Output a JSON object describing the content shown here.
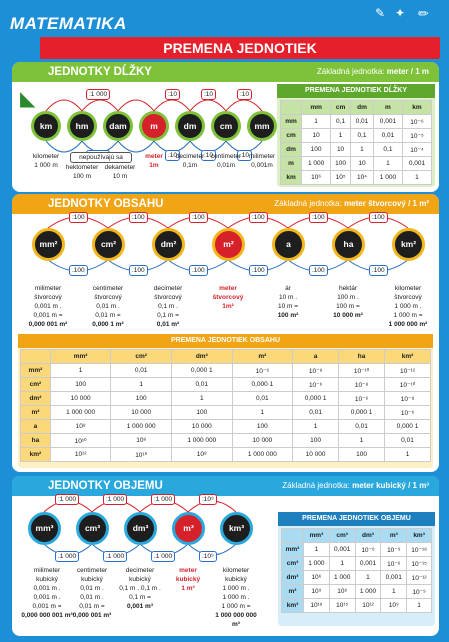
{
  "header": {
    "title": "MATEMATIKA",
    "subtitle": "PREMENA JEDNOTIEK"
  },
  "len": {
    "title": "JEDNOTKY DĹŽKY",
    "base_label": "Základná jednotka:",
    "base_value": "meter / 1 m",
    "units": [
      "km",
      "hm",
      "dam",
      "m",
      "dm",
      "cm",
      "mm"
    ],
    "top_factors": [
      ":1 000",
      ":10",
      ":10",
      ":10"
    ],
    "bottom_factors": [
      ".1 000",
      ".10",
      ".10",
      ".10"
    ],
    "captions": [
      {
        "name": "kilometer",
        "value": "1 000 m"
      },
      {
        "name": "hektometer",
        "value": "100 m"
      },
      {
        "name": "dekameter",
        "value": "10 m"
      },
      {
        "name": "meter",
        "value": "1m"
      },
      {
        "name": "decimeter",
        "value": "0,1m"
      },
      {
        "name": "centimeter",
        "value": "0,01m"
      },
      {
        "name": "milimeter",
        "value": "0,001m"
      }
    ],
    "note": "nepoužívajú sa",
    "table": {
      "title": "PREMENA JEDNOTIEK DĹŽKY",
      "cols": [
        "mm",
        "cm",
        "dm",
        "m",
        "km"
      ],
      "rows": [
        {
          "h": "mm",
          "c": [
            "1",
            "0,1",
            "0,01",
            "0,001",
            "10⁻⁶"
          ]
        },
        {
          "h": "cm",
          "c": [
            "10",
            "1",
            "0,1",
            "0,01",
            "10⁻⁵"
          ]
        },
        {
          "h": "dm",
          "c": [
            "100",
            "10",
            "1",
            "0,1",
            "10⁻⁴"
          ]
        },
        {
          "h": "m",
          "c": [
            "1 000",
            "100",
            "10",
            "1",
            "0,001"
          ]
        },
        {
          "h": "km",
          "c": [
            "10⁶",
            "10⁵",
            "10⁴",
            "1 000",
            "1"
          ]
        }
      ]
    }
  },
  "area": {
    "title": "JEDNOTKY OBSAHU",
    "base_label": "Základná jednotka:",
    "base_value": "meter štvorcový / 1 m²",
    "units": [
      "mm²",
      "cm²",
      "dm²",
      "m²",
      "a",
      "ha",
      "km²"
    ],
    "top_factors": [
      ":100",
      ":100",
      ":100",
      ":100",
      ":100",
      ":100"
    ],
    "bottom_factors": [
      ".100",
      ".100",
      ".100",
      ".100",
      ".100",
      ".100"
    ],
    "captions": [
      {
        "name": "milimeter\nštvorcový",
        "l1": "0,001 m .",
        "l2": "0,001 m =",
        "value": "0,000 001 m²"
      },
      {
        "name": "centimeter\nštvorcový",
        "l1": "0,01 m .",
        "l2": "0,01 m =",
        "value": "0,000 1 m²"
      },
      {
        "name": "decimeter\nštvorcový",
        "l1": "0,1 m .",
        "l2": "0,1 m =",
        "value": "0,01 m²"
      },
      {
        "name": "meter\nštvorcový",
        "l1": "1m²",
        "l2": "",
        "value": ""
      },
      {
        "name": "ár",
        "l1": "10 m .",
        "l2": "10 m =",
        "value": "100 m²"
      },
      {
        "name": "hektár",
        "l1": "100 m .",
        "l2": "100 m =",
        "value": "10 000 m²"
      },
      {
        "name": "kilometer\nštvorcový",
        "l1": "1 000 m .",
        "l2": "1 000 m =",
        "value": "1 000 000 m²"
      }
    ],
    "table": {
      "title": "PREMENA JEDNOTIEK OBSAHU",
      "cols": [
        "mm²",
        "cm²",
        "dm²",
        "m²",
        "a",
        "ha",
        "km²"
      ],
      "rows": [
        {
          "h": "mm²",
          "c": [
            "1",
            "0,01",
            "0,000 1",
            "10⁻⁶",
            "10⁻⁸",
            "10⁻¹⁰",
            "10⁻¹²"
          ]
        },
        {
          "h": "cm²",
          "c": [
            "100",
            "1",
            "0,01",
            "0,000 1",
            "10⁻⁶",
            "10⁻⁸",
            "10⁻¹⁰"
          ]
        },
        {
          "h": "dm²",
          "c": [
            "10 000",
            "100",
            "1",
            "0,01",
            "0,000 1",
            "10⁻⁶",
            "10⁻⁸"
          ]
        },
        {
          "h": "m²",
          "c": [
            "1 000 000",
            "10 000",
            "100",
            "1",
            "0,01",
            "0,000 1",
            "10⁻⁶"
          ]
        },
        {
          "h": "a",
          "c": [
            "10⁸",
            "1 000 000",
            "10 000",
            "100",
            "1",
            "0,01",
            "0,000 1"
          ]
        },
        {
          "h": "ha",
          "c": [
            "10¹⁰",
            "10⁸",
            "1 000 000",
            "10 000",
            "100",
            "1",
            "0,01"
          ]
        },
        {
          "h": "km²",
          "c": [
            "10¹²",
            "10¹⁰",
            "10⁸",
            "1 000 000",
            "10 000",
            "100",
            "1"
          ]
        }
      ]
    }
  },
  "vol": {
    "title": "JEDNOTKY OBJEMU",
    "base_label": "Základná jednotka:",
    "base_value": "meter kubický / 1 m³",
    "units": [
      "mm³",
      "cm³",
      "dm³",
      "m³",
      "km³"
    ],
    "top_factors": [
      ":1 000",
      ":1 000",
      ":1 000",
      ":10⁹"
    ],
    "bottom_factors": [
      ".1 000",
      ".1 000",
      ".1 000",
      ".10⁹"
    ],
    "captions": [
      {
        "name": "milimeter\nkubický",
        "l1": "0,001 m .",
        "l2": "0,001 m .",
        "l3": "0,001 m =",
        "value": "0,000 000 001 m³"
      },
      {
        "name": "centimeter\nkubický",
        "l1": "0,01 m .",
        "l2": "0,01 m .",
        "l3": "0,01 m =",
        "value": "0,000 001 m³"
      },
      {
        "name": "decimeter\nkubický",
        "l1": "0,1 m . 0,1 m .",
        "l2": "0,1 m =",
        "l3": "",
        "value": "0,001 m³"
      },
      {
        "name": "meter\nkubický",
        "l1": "1 m³",
        "l2": "",
        "l3": "",
        "value": ""
      },
      {
        "name": "kilometer\nkubický",
        "l1": "1 000 m .",
        "l2": "1 000 m .",
        "l3": "1 000 m =",
        "value": "1 000 000 000 m³"
      }
    ],
    "table": {
      "title": "PREMENA JEDNOTIEK OBJEMU",
      "cols": [
        "mm³",
        "cm³",
        "dm³",
        "m³",
        "km³"
      ],
      "rows": [
        {
          "h": "mm³",
          "c": [
            "1",
            "0,001",
            "10⁻⁶",
            "10⁻⁹",
            "10⁻¹⁸"
          ]
        },
        {
          "h": "cm³",
          "c": [
            "1 000",
            "1",
            "0,001",
            "10⁻⁶",
            "10⁻¹⁵"
          ]
        },
        {
          "h": "dm³",
          "c": [
            "10⁶",
            "1 000",
            "1",
            "0,001",
            "10⁻¹²"
          ]
        },
        {
          "h": "m³",
          "c": [
            "10⁹",
            "10⁶",
            "1 000",
            "1",
            "10⁻⁹"
          ]
        },
        {
          "h": "km³",
          "c": [
            "10¹⁸",
            "10¹⁵",
            "10¹²",
            "10⁹",
            "1"
          ]
        }
      ]
    }
  }
}
